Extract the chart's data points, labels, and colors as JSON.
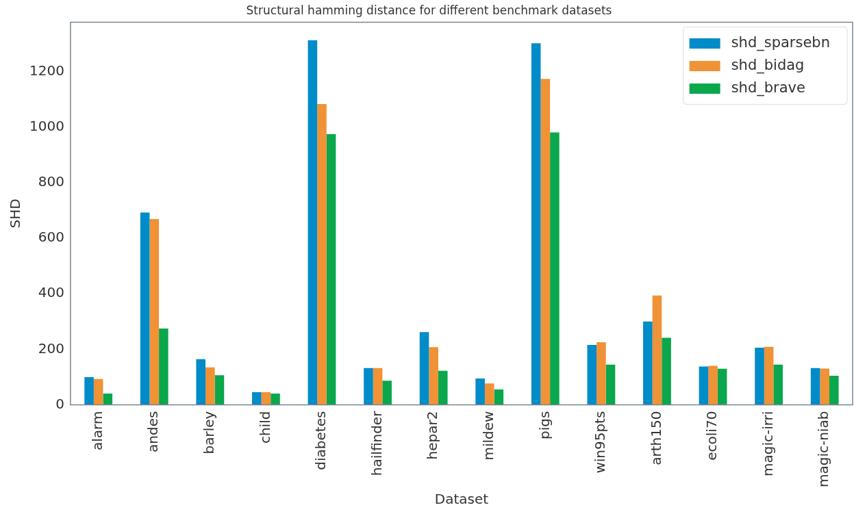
{
  "chart_data": {
    "type": "bar",
    "title": "Structural hamming distance for different benchmark datasets",
    "xlabel": "Dataset",
    "ylabel": "SHD",
    "categories": [
      "alarm",
      "andes",
      "barley",
      "child",
      "diabetes",
      "hailfinder",
      "hepar2",
      "mildew",
      "pigs",
      "win95pts",
      "arth150",
      "ecoli70",
      "magic-irri",
      "magic-niab"
    ],
    "series": [
      {
        "name": "shd_sparsebn",
        "color": "#008bc9",
        "values": [
          100,
          693,
          165,
          46,
          1313,
          133,
          262,
          95,
          1302,
          216,
          300,
          138,
          206,
          133
        ]
      },
      {
        "name": "shd_bidag",
        "color": "#f09236",
        "values": [
          93,
          669,
          135,
          46,
          1083,
          133,
          208,
          77,
          1174,
          226,
          394,
          141,
          209,
          131
        ]
      },
      {
        "name": "shd_brave",
        "color": "#0aa74d",
        "values": [
          41,
          275,
          107,
          41,
          975,
          87,
          123,
          56,
          981,
          145,
          242,
          130,
          145,
          105
        ]
      }
    ],
    "ylim": [
      0,
      1378
    ],
    "yticks": [
      0,
      200,
      400,
      600,
      800,
      1000,
      1200
    ],
    "grid": false,
    "legend": "top right"
  }
}
